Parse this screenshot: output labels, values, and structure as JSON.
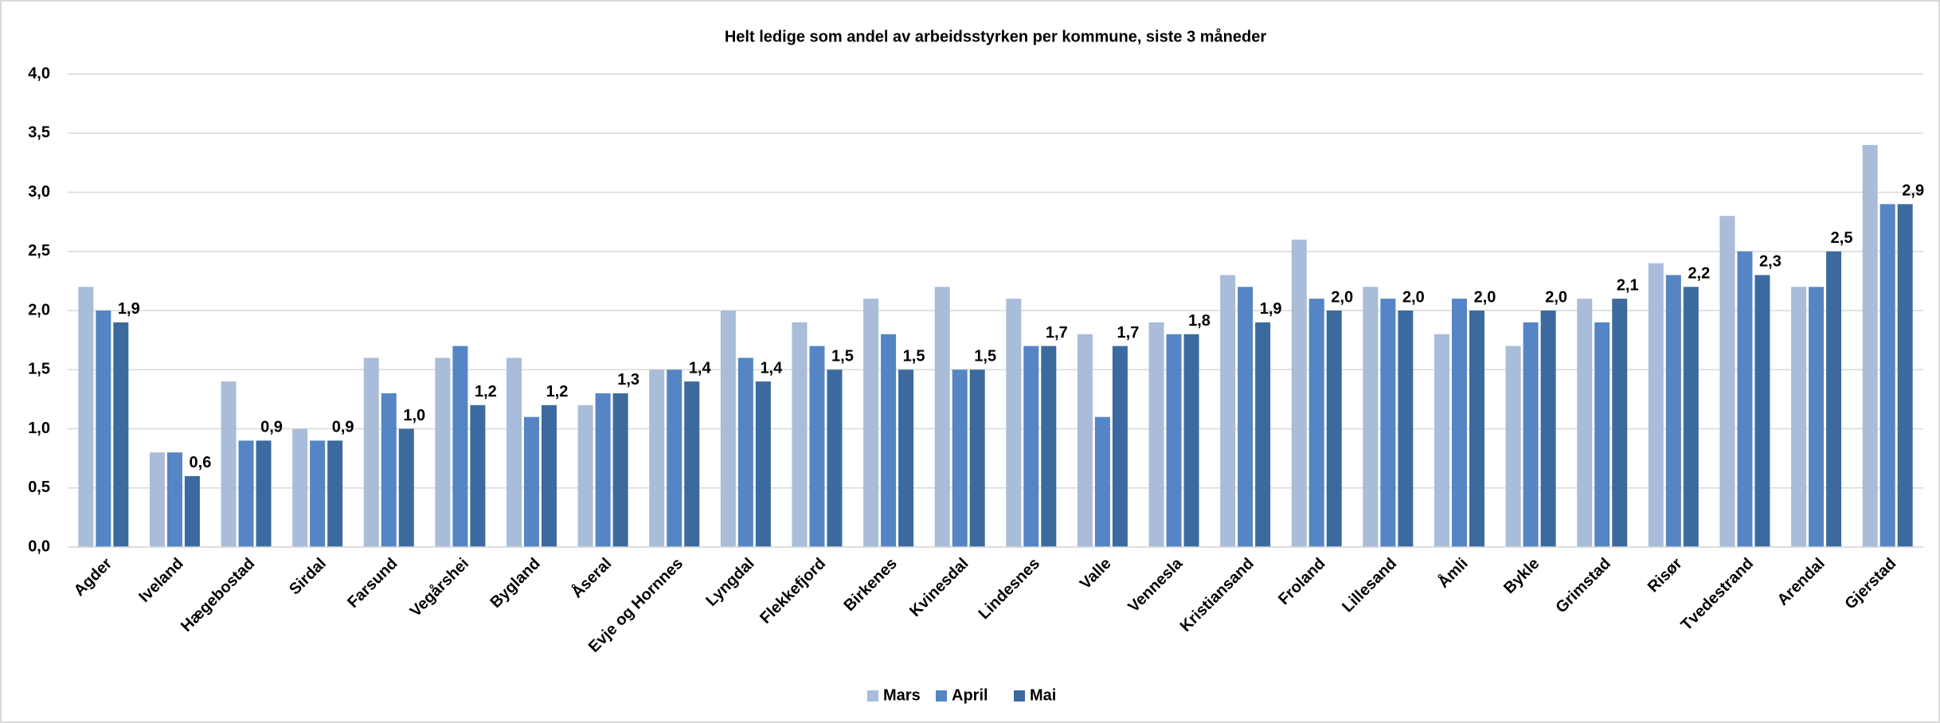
{
  "chart_data": {
    "type": "bar",
    "title": "Helt ledige som andel av arbeidsstyrken per kommune, siste 3 måneder",
    "categories": [
      "Agder",
      "Iveland",
      "Hægebostad",
      "Sirdal",
      "Farsund",
      "Vegårshei",
      "Bygland",
      "Åseral",
      "Evje og Hornnes",
      "Lyngdal",
      "Flekkefjord",
      "Birkenes",
      "Kvinesdal",
      "Lindesnes",
      "Valle",
      "Vennesla",
      "Kristiansand",
      "Froland",
      "Lillesand",
      "Åmli",
      "Bykle",
      "Grimstad",
      "Risør",
      "Tvedestrand",
      "Arendal",
      "Gjerstad"
    ],
    "series": [
      {
        "name": "Mars",
        "color": "#a9bcd9",
        "values": [
          2.2,
          0.8,
          1.4,
          1.0,
          1.6,
          1.6,
          1.6,
          1.2,
          1.5,
          2.0,
          1.9,
          2.1,
          2.2,
          2.1,
          1.8,
          1.9,
          2.3,
          2.6,
          2.2,
          1.8,
          1.7,
          2.1,
          2.4,
          2.8,
          2.2,
          3.4
        ]
      },
      {
        "name": "April",
        "color": "#5585c4",
        "values": [
          2.0,
          0.8,
          0.9,
          0.9,
          1.3,
          1.7,
          1.1,
          1.3,
          1.5,
          1.6,
          1.7,
          1.8,
          1.5,
          1.7,
          1.1,
          1.8,
          2.2,
          2.1,
          2.1,
          2.1,
          1.9,
          1.9,
          2.3,
          2.5,
          2.2,
          2.9
        ]
      },
      {
        "name": "Mai",
        "color": "#3d6a9e",
        "values": [
          1.9,
          0.6,
          0.9,
          0.9,
          1.0,
          1.2,
          1.2,
          1.3,
          1.4,
          1.4,
          1.5,
          1.5,
          1.5,
          1.7,
          1.7,
          1.8,
          1.9,
          2.0,
          2.0,
          2.0,
          2.0,
          2.1,
          2.2,
          2.3,
          2.5,
          2.9
        ],
        "value_labels": [
          "1,9",
          "0,6",
          "0,9",
          "0,9",
          "1,0",
          "1,2",
          "1,2",
          "1,3",
          "1,4",
          "1,4",
          "1,5",
          "1,5",
          "1,5",
          "1,7",
          "1,7",
          "1,8",
          "1,9",
          "2,0",
          "2,0",
          "2,0",
          "2,0",
          "2,1",
          "2,2",
          "2,3",
          "2,5",
          "2,9"
        ]
      }
    ],
    "ylim": [
      0,
      4
    ],
    "yticks": [
      {
        "value": 0,
        "label": "0,0"
      },
      {
        "value": 0.5,
        "label": "0,5"
      },
      {
        "value": 1,
        "label": "1,0"
      },
      {
        "value": 1.5,
        "label": "1,5"
      },
      {
        "value": 2,
        "label": "2,0"
      },
      {
        "value": 2.5,
        "label": "2,5"
      },
      {
        "value": 3,
        "label": "3,0"
      },
      {
        "value": 3.5,
        "label": "3,5"
      },
      {
        "value": 4,
        "label": "4,0"
      }
    ],
    "grid": true,
    "legend": "bottom"
  }
}
